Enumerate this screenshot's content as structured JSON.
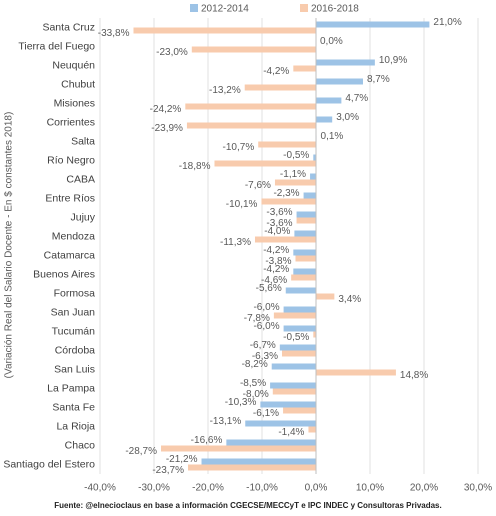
{
  "chart_data": {
    "type": "bar",
    "orientation": "horizontal",
    "y_label": "(Variación Real del Salario Docente - En $ constantes 2018)",
    "source": "Fuente: @elnecioclaus en base a información CGECSE/MECCyT e IPC INDEC y Consultoras Privadas.",
    "categories": [
      "Santa Cruz",
      "Tierra del Fuego",
      "Neuquén",
      "Chubut",
      "Misiones",
      "Corrientes",
      "Salta",
      "Río Negro",
      "CABA",
      "Entre Ríos",
      "Jujuy",
      "Mendoza",
      "Catamarca",
      "Buenos Aires",
      "Formosa",
      "San Juan",
      "Tucumán",
      "Córdoba",
      "San Luis",
      "La Pampa",
      "Santa Fe",
      "La Rioja",
      "Chaco",
      "Santiago del Estero"
    ],
    "series": [
      {
        "name": "2012-2014",
        "color": "#9dc3e6",
        "values": [
          21.0,
          0.0,
          10.9,
          8.7,
          4.7,
          3.0,
          0.1,
          -0.5,
          -1.1,
          -2.3,
          -3.6,
          -4.0,
          -4.2,
          -4.2,
          -5.6,
          -6.0,
          -6.0,
          -6.7,
          -8.2,
          -8.5,
          -10.3,
          -13.1,
          -16.6,
          -21.2
        ],
        "value_labels": [
          "21,0%",
          "0,0%",
          "10,9%",
          "8,7%",
          "4,7%",
          "3,0%",
          "0,1%",
          "-0,5%",
          "-1,1%",
          "-2,3%",
          "-3,6%",
          "-4,0%",
          "-4,2%",
          "-4,2%",
          "-5,6%",
          "-6,0%",
          "-6,0%",
          "-6,7%",
          "-8,2%",
          "-8,5%",
          "-10,3%",
          "-13,1%",
          "-16,6%",
          "-21,2%"
        ]
      },
      {
        "name": "2016-2018",
        "color": "#f8cbad",
        "values": [
          -33.8,
          -23.0,
          -4.2,
          -13.2,
          -24.2,
          -23.9,
          -10.7,
          -18.8,
          -7.6,
          -10.1,
          -3.6,
          -11.3,
          -3.8,
          -4.6,
          3.4,
          -7.8,
          -0.5,
          -6.3,
          14.8,
          -8.0,
          -6.1,
          -1.4,
          -28.7,
          -23.7
        ],
        "value_labels": [
          "-33,8%",
          "-23,0%",
          "-4,2%",
          "-13,2%",
          "-24,2%",
          "-23,9%",
          "-10,7%",
          "-18,8%",
          "-7,6%",
          "-10,1%",
          "-3,6%",
          "-11,3%",
          "-3,8%",
          "-4,6%",
          "3,4%",
          "-7,8%",
          "-0,5%",
          "-6,3%",
          "14,8%",
          "-8,0%",
          "-6,1%",
          "-1,4%",
          "-28,7%",
          "-23,7%"
        ]
      }
    ],
    "xlim": [
      -40,
      30
    ],
    "xticks": [
      {
        "value": -40,
        "label": "-40,0%"
      },
      {
        "value": -30,
        "label": "-30,0%"
      },
      {
        "value": -20,
        "label": "-20,0%"
      },
      {
        "value": -10,
        "label": "-10,0%"
      },
      {
        "value": 0,
        "label": "0,0%"
      },
      {
        "value": 10,
        "label": "10,0%"
      },
      {
        "value": 20,
        "label": "20,0%"
      },
      {
        "value": 30,
        "label": "30,0%"
      }
    ],
    "grid": true,
    "legend": "top"
  }
}
